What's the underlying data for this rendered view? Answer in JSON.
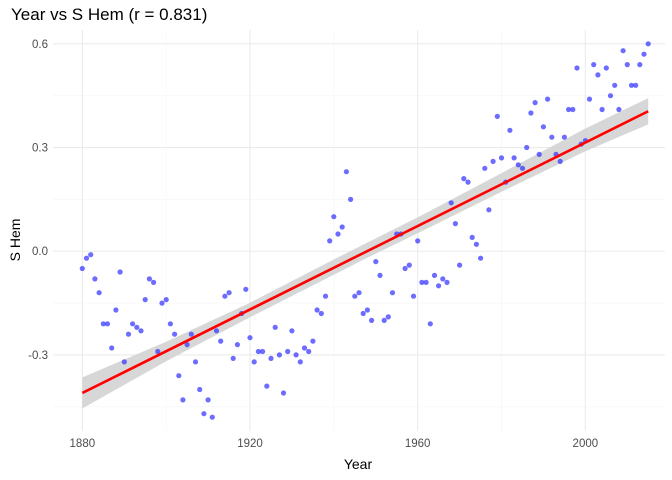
{
  "chart_data": {
    "type": "scatter",
    "title": "Year vs S Hem (r = 0.831)",
    "xlabel": "Year",
    "ylabel": "S Hem",
    "xlim": [
      1873,
      2019
    ],
    "ylim": [
      -0.52,
      0.64
    ],
    "x_ticks": [
      1880,
      1920,
      1960,
      2000
    ],
    "x_tick_labels": [
      "1880",
      "1920",
      "1960",
      "2000"
    ],
    "y_ticks": [
      -0.3,
      0.0,
      0.3,
      0.6
    ],
    "y_tick_labels": [
      "-0.3",
      "0.0",
      "0.3",
      "0.6"
    ],
    "grid": true,
    "colors": {
      "points": "#3333ff",
      "fit_line": "#ff0000",
      "ribbon": "#d3d3d3",
      "grid_major": "#ebebeb",
      "grid_minor": "#f5f5f5"
    },
    "points": [
      [
        1880,
        -0.05
      ],
      [
        1881,
        -0.02
      ],
      [
        1882,
        -0.01
      ],
      [
        1883,
        -0.08
      ],
      [
        1884,
        -0.12
      ],
      [
        1885,
        -0.21
      ],
      [
        1886,
        -0.21
      ],
      [
        1887,
        -0.28
      ],
      [
        1888,
        -0.17
      ],
      [
        1889,
        -0.06
      ],
      [
        1890,
        -0.32
      ],
      [
        1891,
        -0.24
      ],
      [
        1892,
        -0.21
      ],
      [
        1893,
        -0.22
      ],
      [
        1894,
        -0.23
      ],
      [
        1895,
        -0.14
      ],
      [
        1896,
        -0.08
      ],
      [
        1897,
        -0.09
      ],
      [
        1898,
        -0.29
      ],
      [
        1899,
        -0.15
      ],
      [
        1900,
        -0.14
      ],
      [
        1901,
        -0.21
      ],
      [
        1902,
        -0.24
      ],
      [
        1903,
        -0.36
      ],
      [
        1904,
        -0.43
      ],
      [
        1905,
        -0.27
      ],
      [
        1906,
        -0.24
      ],
      [
        1907,
        -0.32
      ],
      [
        1908,
        -0.4
      ],
      [
        1909,
        -0.47
      ],
      [
        1910,
        -0.43
      ],
      [
        1911,
        -0.48
      ],
      [
        1912,
        -0.23
      ],
      [
        1913,
        -0.26
      ],
      [
        1914,
        -0.13
      ],
      [
        1915,
        -0.12
      ],
      [
        1916,
        -0.31
      ],
      [
        1917,
        -0.27
      ],
      [
        1918,
        -0.18
      ],
      [
        1919,
        -0.11
      ],
      [
        1920,
        -0.25
      ],
      [
        1921,
        -0.32
      ],
      [
        1922,
        -0.29
      ],
      [
        1923,
        -0.29
      ],
      [
        1924,
        -0.39
      ],
      [
        1925,
        -0.31
      ],
      [
        1926,
        -0.22
      ],
      [
        1927,
        -0.3
      ],
      [
        1928,
        -0.41
      ],
      [
        1929,
        -0.29
      ],
      [
        1930,
        -0.23
      ],
      [
        1931,
        -0.3
      ],
      [
        1932,
        -0.32
      ],
      [
        1933,
        -0.28
      ],
      [
        1934,
        -0.29
      ],
      [
        1935,
        -0.26
      ],
      [
        1936,
        -0.17
      ],
      [
        1937,
        -0.18
      ],
      [
        1938,
        -0.13
      ],
      [
        1939,
        0.03
      ],
      [
        1940,
        0.1
      ],
      [
        1941,
        0.05
      ],
      [
        1942,
        0.07
      ],
      [
        1943,
        0.23
      ],
      [
        1944,
        0.15
      ],
      [
        1945,
        -0.13
      ],
      [
        1946,
        -0.12
      ],
      [
        1947,
        -0.18
      ],
      [
        1948,
        -0.17
      ],
      [
        1949,
        -0.2
      ],
      [
        1950,
        -0.03
      ],
      [
        1951,
        -0.07
      ],
      [
        1952,
        -0.2
      ],
      [
        1953,
        -0.19
      ],
      [
        1954,
        -0.12
      ],
      [
        1955,
        0.05
      ],
      [
        1956,
        0.05
      ],
      [
        1957,
        -0.05
      ],
      [
        1958,
        -0.04
      ],
      [
        1959,
        -0.13
      ],
      [
        1960,
        0.03
      ],
      [
        1961,
        -0.09
      ],
      [
        1962,
        -0.09
      ],
      [
        1963,
        -0.21
      ],
      [
        1964,
        -0.07
      ],
      [
        1965,
        -0.1
      ],
      [
        1966,
        -0.08
      ],
      [
        1967,
        -0.09
      ],
      [
        1968,
        0.14
      ],
      [
        1969,
        0.08
      ],
      [
        1970,
        -0.04
      ],
      [
        1971,
        0.21
      ],
      [
        1972,
        0.2
      ],
      [
        1973,
        0.04
      ],
      [
        1974,
        0.02
      ],
      [
        1975,
        -0.02
      ],
      [
        1976,
        0.24
      ],
      [
        1977,
        0.12
      ],
      [
        1978,
        0.26
      ],
      [
        1979,
        0.39
      ],
      [
        1980,
        0.27
      ],
      [
        1981,
        0.2
      ],
      [
        1982,
        0.35
      ],
      [
        1983,
        0.27
      ],
      [
        1984,
        0.25
      ],
      [
        1985,
        0.24
      ],
      [
        1986,
        0.3
      ],
      [
        1987,
        0.4
      ],
      [
        1988,
        0.43
      ],
      [
        1989,
        0.28
      ],
      [
        1990,
        0.36
      ],
      [
        1991,
        0.44
      ],
      [
        1992,
        0.33
      ],
      [
        1993,
        0.28
      ],
      [
        1994,
        0.26
      ],
      [
        1995,
        0.33
      ],
      [
        1996,
        0.41
      ],
      [
        1997,
        0.41
      ],
      [
        1998,
        0.53
      ],
      [
        1999,
        0.31
      ],
      [
        2000,
        0.32
      ],
      [
        2001,
        0.44
      ],
      [
        2002,
        0.54
      ],
      [
        2003,
        0.51
      ],
      [
        2004,
        0.41
      ],
      [
        2005,
        0.53
      ],
      [
        2006,
        0.45
      ],
      [
        2007,
        0.48
      ],
      [
        2008,
        0.41
      ],
      [
        2009,
        0.58
      ],
      [
        2010,
        0.54
      ],
      [
        2011,
        0.48
      ],
      [
        2012,
        0.48
      ],
      [
        2013,
        0.54
      ],
      [
        2014,
        0.57
      ],
      [
        2015,
        0.6
      ]
    ],
    "fit_line": {
      "x": [
        1880,
        2015
      ],
      "y": [
        -0.41,
        0.405
      ]
    },
    "confidence_band": {
      "x": [
        1880,
        1900,
        1920,
        1940,
        1947.5,
        1960,
        1980,
        2000,
        2015
      ],
      "lower": [
        -0.455,
        -0.318,
        -0.191,
        -0.068,
        -0.022,
        0.052,
        0.172,
        0.289,
        0.367
      ],
      "upper": [
        -0.365,
        -0.262,
        -0.149,
        -0.024,
        0.022,
        0.098,
        0.226,
        0.355,
        0.443
      ]
    }
  }
}
